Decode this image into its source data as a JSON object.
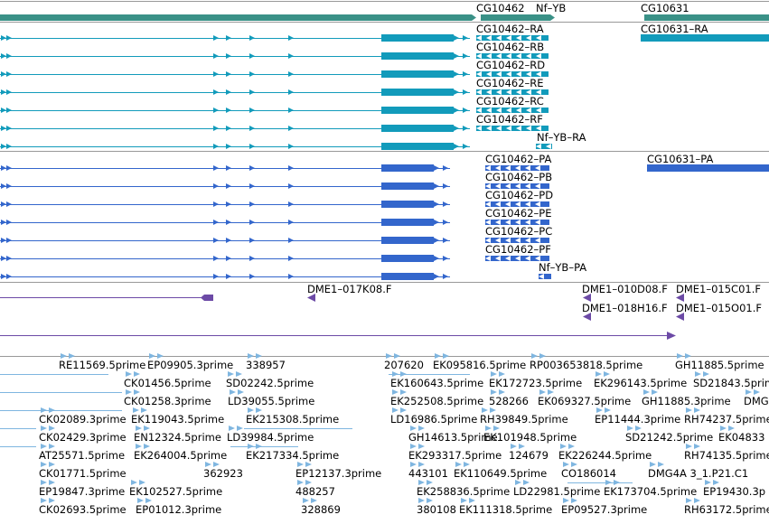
{
  "colors": {
    "gene": "#3a9187",
    "transcript": "#129bbb",
    "protein": "#3366cc",
    "clone": "#6c4aa6",
    "est": "#7fb6e0",
    "track_border": "#999999"
  },
  "tracks": {
    "genes": [
      {
        "name": "CG10462",
        "label": "CG10462"
      },
      {
        "name": "Nf-YB",
        "label": "Nf–YB"
      },
      {
        "name": "CG10631",
        "label": "CG10631"
      }
    ],
    "transcripts": [
      {
        "label": "CG10462–RA"
      },
      {
        "label": "CG10462–RB"
      },
      {
        "label": "CG10462–RD"
      },
      {
        "label": "CG10462–RE"
      },
      {
        "label": "CG10462–RC"
      },
      {
        "label": "CG10462–RF"
      },
      {
        "label": "Nf–YB–RA"
      },
      {
        "label": "CG10631–RA"
      }
    ],
    "proteins": [
      {
        "label": "CG10462–PA"
      },
      {
        "label": "CG10462–PB"
      },
      {
        "label": "CG10462–PD"
      },
      {
        "label": "CG10462–PE"
      },
      {
        "label": "CG10462–PC"
      },
      {
        "label": "CG10462–PF"
      },
      {
        "label": "Nf–YB–PA"
      },
      {
        "label": "CG10631–PA"
      }
    ],
    "clones": [
      {
        "label": "DME1–017K08.F"
      },
      {
        "label": "DME1–010D08.F"
      },
      {
        "label": "DME1–015C01.F"
      },
      {
        "label": "DME1–018H16.F"
      },
      {
        "label": "DME1–015O01.F"
      }
    ],
    "ests": [
      {
        "label": "RE11569.5prime"
      },
      {
        "label": "EP09905.3prime"
      },
      {
        "label": "338957"
      },
      {
        "label": "207620"
      },
      {
        "label": "EK095816.5prime"
      },
      {
        "label": "RP003653818.5prime"
      },
      {
        "label": "GH11885.5prime"
      },
      {
        "label": "CK01456.5prime"
      },
      {
        "label": "SD02242.5prime"
      },
      {
        "label": "EK160643.5prime"
      },
      {
        "label": "EK172723.5prime"
      },
      {
        "label": "EK296143.5prime"
      },
      {
        "label": "SD21843.5prime"
      },
      {
        "label": "CK01258.3prime"
      },
      {
        "label": "LD39055.5prime"
      },
      {
        "label": "EK252508.5prime"
      },
      {
        "label": "528266"
      },
      {
        "label": "EK069327.5prime"
      },
      {
        "label": "GH11885.3prime"
      },
      {
        "label": "DMG"
      },
      {
        "label": "CK02089.3prime"
      },
      {
        "label": "EK119043.5prime"
      },
      {
        "label": "EK215308.5prime"
      },
      {
        "label": "LD16986.5prime"
      },
      {
        "label": "RH39849.5prime"
      },
      {
        "label": "EP11444.3prime"
      },
      {
        "label": "RH74237.5prime"
      },
      {
        "label": "CK02429.3prime"
      },
      {
        "label": "EN12324.5prime"
      },
      {
        "label": "LD39984.5prime"
      },
      {
        "label": "GH14613.5prime"
      },
      {
        "label": "EK101948.5prime"
      },
      {
        "label": "SD21242.5prime"
      },
      {
        "label": "EK04833"
      },
      {
        "label": "AT25571.5prime"
      },
      {
        "label": "EK264004.5prime"
      },
      {
        "label": "EK217334.5prime"
      },
      {
        "label": "EK293317.5prime"
      },
      {
        "label": "124679"
      },
      {
        "label": "EK226244.5prime"
      },
      {
        "label": "RH74135.5prime"
      },
      {
        "label": "CK01771.5prime"
      },
      {
        "label": "362923"
      },
      {
        "label": "EP12137.3prime"
      },
      {
        "label": "443101"
      },
      {
        "label": "EK110649.5prime"
      },
      {
        "label": "CO186014"
      },
      {
        "label": "DMG4A 3_1.P21.C1"
      },
      {
        "label": "EP19847.3prime"
      },
      {
        "label": "EK102527.5prime"
      },
      {
        "label": "488257"
      },
      {
        "label": "EK258836.5prime"
      },
      {
        "label": "LD22981.5prime"
      },
      {
        "label": "EK173704.5prime"
      },
      {
        "label": "EP19430.3p"
      },
      {
        "label": "CK02693.5prime"
      },
      {
        "label": "EP01012.3prime"
      },
      {
        "label": "328869"
      },
      {
        "label": "380108"
      },
      {
        "label": "EK111318.5prime"
      },
      {
        "label": "EP09527.3prime"
      },
      {
        "label": "RH63172.5prime"
      }
    ]
  }
}
